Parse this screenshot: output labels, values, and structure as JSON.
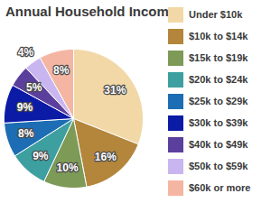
{
  "chart_data": {
    "type": "pie",
    "title": "Annual Household Income",
    "categories": [
      "Under $10k",
      "$10k to $14k",
      "$15k to $19k",
      "$20k to $24k",
      "$25k to $29k",
      "$30k to $39k",
      "$40k to $49k",
      "$50k to $59k",
      "$60k or more"
    ],
    "values": [
      31,
      16,
      10,
      9,
      8,
      9,
      5,
      4,
      8
    ],
    "value_labels": [
      "31%",
      "16%",
      "10%",
      "9%",
      "8%",
      "9%",
      "5%",
      "4%",
      "8%"
    ],
    "colors": [
      "#f2d8a6",
      "#b3863c",
      "#7d9a57",
      "#3d9fa0",
      "#1c6db3",
      "#0b1ba6",
      "#5b3f9c",
      "#c9b6f0",
      "#f4b6a2"
    ],
    "data_labels": true,
    "legend": "right"
  }
}
